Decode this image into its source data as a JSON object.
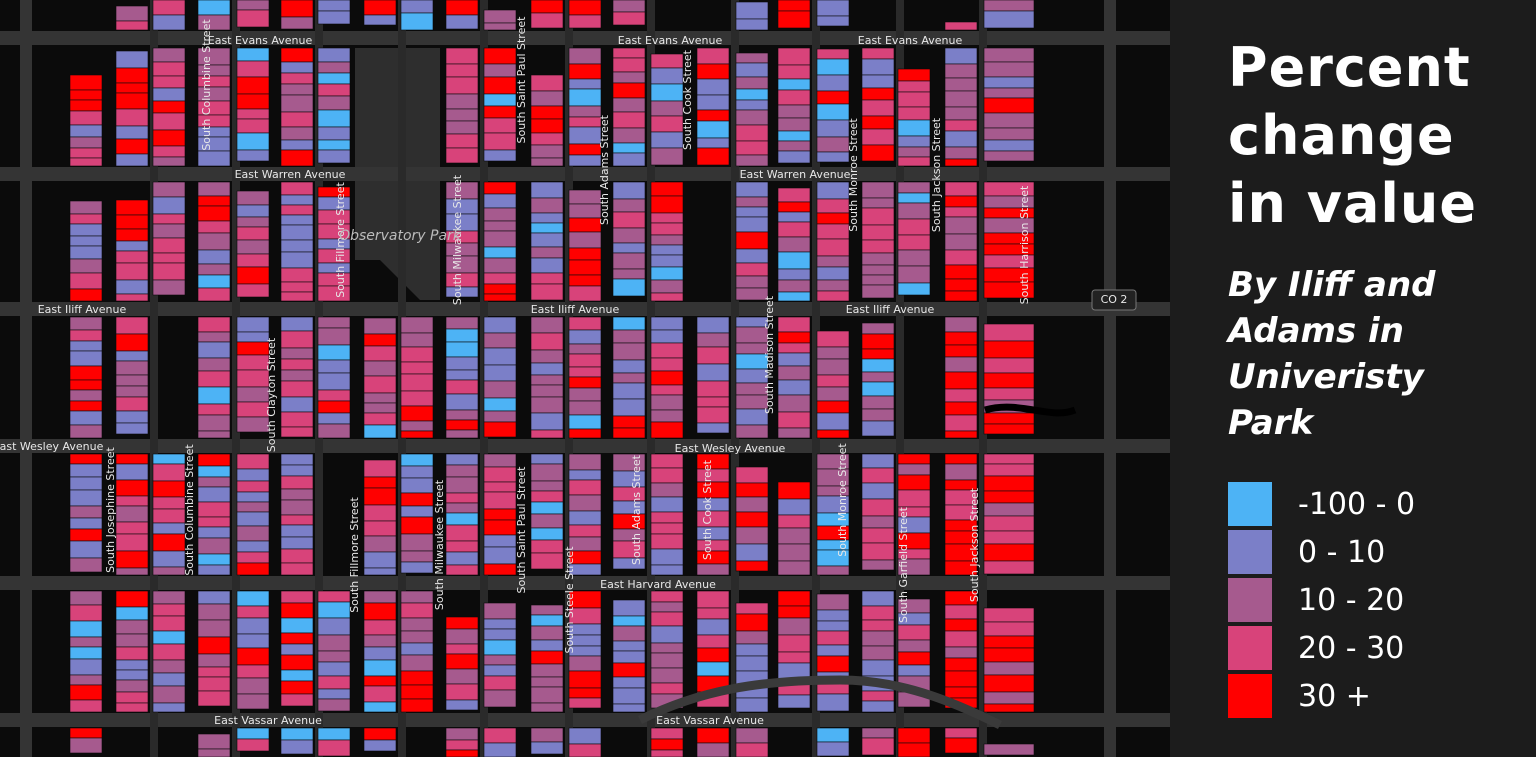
{
  "map": {
    "avenues": [
      "East Evans Avenue",
      "East Evans Avenue",
      "East Evans Avenue",
      "East Warren Avenue",
      "East Warren Avenue",
      "East Iliff Avenue",
      "East Iliff Avenue",
      "East Iliff Avenue",
      "East Wesley Avenue",
      "East Wesley Avenue",
      "East Harvard Avenue",
      "East Vassar Avenue",
      "East Vassar Avenue"
    ],
    "streets": [
      "South Columbine Street",
      "South Saint Paul Street",
      "South Cook Street",
      "South Adams Street",
      "South Monroe Street",
      "South Jackson Street",
      "South Milwaukee Street",
      "South Fillmore Street",
      "South Harrison Street",
      "South Madison Street",
      "South Clayton Street",
      "South Josephine Street",
      "South Columbine Street",
      "South Fillmore Street",
      "South Milwaukee Street",
      "South Saint Paul Street",
      "South Adams Street",
      "South Cook Street",
      "South Steele Street",
      "South Monroe Street",
      "South Garfield Street",
      "South Jackson Street"
    ],
    "park": "Observatory Park",
    "route": "CO 2"
  },
  "legend": {
    "title": "Percent change in value",
    "subtitle": "By Iliff and Adams in Univeristy Park",
    "items": [
      {
        "label": "-100 - 0",
        "color": "#4db3f5"
      },
      {
        "label": "0 - 10",
        "color": "#7b7fc8"
      },
      {
        "label": "10 - 20",
        "color": "#a65a8e"
      },
      {
        "label": "20 - 30",
        "color": "#d8437a"
      },
      {
        "label": "30 +",
        "color": "#ff0000"
      }
    ]
  }
}
